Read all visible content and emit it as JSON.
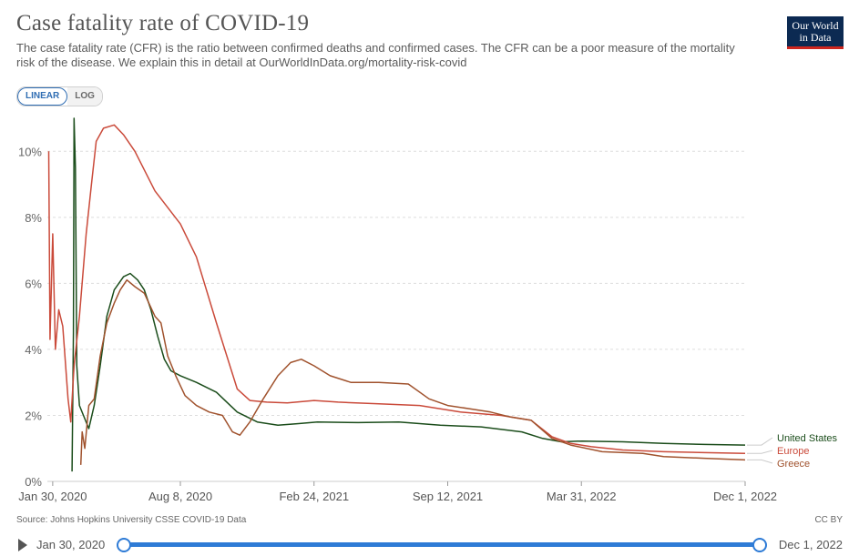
{
  "header": {
    "title": "Case fatality rate of COVID-19",
    "subtitle": "The case fatality rate (CFR) is the ratio between confirmed deaths and confirmed cases. The CFR can be a poor measure of the mortality risk of the disease. We explain this in detail at OurWorldInData.org/mortality-risk-covid",
    "logo_line1": "Our World",
    "logo_line2": "in Data"
  },
  "controls": {
    "linear_label": "LINEAR",
    "log_label": "LOG",
    "active_scale": "linear"
  },
  "footer": {
    "source": "Source: Johns Hopkins University CSSE COVID-19 Data",
    "license": "CC BY"
  },
  "timeline": {
    "start_label": "Jan 30, 2020",
    "end_label": "Dec 1, 2022"
  },
  "chart_data": {
    "type": "line",
    "title": "Case fatality rate of COVID-19",
    "y_unit": "%",
    "ylim": [
      0,
      11
    ],
    "y_ticks": [
      0,
      2,
      4,
      6,
      8,
      10
    ],
    "y_tick_labels": [
      "0%",
      "2%",
      "4%",
      "6%",
      "8%",
      "10%"
    ],
    "x_range": [
      "2020-01-22",
      "2022-12-01"
    ],
    "x_ticks": [
      "2020-01-30",
      "2020-08-08",
      "2021-02-24",
      "2021-09-12",
      "2022-03-31",
      "2022-12-01"
    ],
    "x_tick_labels": [
      "Jan 30, 2020",
      "Aug 8, 2020",
      "Feb 24, 2021",
      "Sep 12, 2021",
      "Mar 31, 2022",
      "Dec 1, 2022"
    ],
    "grid": "horizontal-dashed",
    "legend_position": "right-end-labels",
    "series": [
      {
        "name": "United States",
        "color": "#1b4d1b",
        "points": [
          [
            "2020-02-28",
            0.3
          ],
          [
            "2020-03-01",
            4.5
          ],
          [
            "2020-03-02",
            11.0
          ],
          [
            "2020-03-04",
            9.5
          ],
          [
            "2020-03-06",
            3.5
          ],
          [
            "2020-03-10",
            2.3
          ],
          [
            "2020-03-16",
            2.0
          ],
          [
            "2020-03-24",
            1.6
          ],
          [
            "2020-04-01",
            2.3
          ],
          [
            "2020-04-10",
            3.5
          ],
          [
            "2020-04-20",
            5.0
          ],
          [
            "2020-05-01",
            5.8
          ],
          [
            "2020-05-15",
            6.2
          ],
          [
            "2020-05-25",
            6.3
          ],
          [
            "2020-06-05",
            6.1
          ],
          [
            "2020-06-15",
            5.8
          ],
          [
            "2020-06-25",
            5.2
          ],
          [
            "2020-07-05",
            4.4
          ],
          [
            "2020-07-15",
            3.7
          ],
          [
            "2020-07-25",
            3.35
          ],
          [
            "2020-08-08",
            3.2
          ],
          [
            "2020-09-01",
            3.0
          ],
          [
            "2020-10-01",
            2.7
          ],
          [
            "2020-11-01",
            2.1
          ],
          [
            "2020-12-01",
            1.8
          ],
          [
            "2021-01-01",
            1.7
          ],
          [
            "2021-02-01",
            1.75
          ],
          [
            "2021-03-01",
            1.8
          ],
          [
            "2021-05-01",
            1.78
          ],
          [
            "2021-07-01",
            1.8
          ],
          [
            "2021-09-01",
            1.7
          ],
          [
            "2021-11-01",
            1.65
          ],
          [
            "2022-01-01",
            1.5
          ],
          [
            "2022-02-01",
            1.3
          ],
          [
            "2022-03-01",
            1.2
          ],
          [
            "2022-04-01",
            1.22
          ],
          [
            "2022-06-01",
            1.2
          ],
          [
            "2022-08-01",
            1.15
          ],
          [
            "2022-10-01",
            1.12
          ],
          [
            "2022-12-01",
            1.1
          ]
        ]
      },
      {
        "name": "Europe",
        "color": "#ca4a3a",
        "points": [
          [
            "2020-01-24",
            10.0
          ],
          [
            "2020-01-26",
            4.3
          ],
          [
            "2020-01-30",
            7.5
          ],
          [
            "2020-02-03",
            4.0
          ],
          [
            "2020-02-08",
            5.2
          ],
          [
            "2020-02-14",
            4.7
          ],
          [
            "2020-02-22",
            2.5
          ],
          [
            "2020-02-26",
            1.8
          ],
          [
            "2020-03-02",
            3.5
          ],
          [
            "2020-03-10",
            5.0
          ],
          [
            "2020-03-20",
            7.5
          ],
          [
            "2020-03-28",
            9.0
          ],
          [
            "2020-04-04",
            10.3
          ],
          [
            "2020-04-15",
            10.7
          ],
          [
            "2020-05-01",
            10.8
          ],
          [
            "2020-05-15",
            10.5
          ],
          [
            "2020-06-01",
            10.0
          ],
          [
            "2020-07-01",
            8.8
          ],
          [
            "2020-08-08",
            7.8
          ],
          [
            "2020-09-01",
            6.8
          ],
          [
            "2020-10-01",
            4.8
          ],
          [
            "2020-11-01",
            2.8
          ],
          [
            "2020-11-20",
            2.45
          ],
          [
            "2020-12-15",
            2.4
          ],
          [
            "2021-01-15",
            2.38
          ],
          [
            "2021-02-24",
            2.45
          ],
          [
            "2021-04-01",
            2.4
          ],
          [
            "2021-06-01",
            2.35
          ],
          [
            "2021-08-01",
            2.3
          ],
          [
            "2021-10-01",
            2.1
          ],
          [
            "2021-12-01",
            2.0
          ],
          [
            "2022-01-15",
            1.85
          ],
          [
            "2022-02-15",
            1.35
          ],
          [
            "2022-03-15",
            1.15
          ],
          [
            "2022-04-15",
            1.05
          ],
          [
            "2022-06-01",
            0.95
          ],
          [
            "2022-08-01",
            0.9
          ],
          [
            "2022-10-01",
            0.87
          ],
          [
            "2022-12-01",
            0.85
          ]
        ]
      },
      {
        "name": "Greece",
        "color": "#a0522d",
        "points": [
          [
            "2020-03-12",
            0.5
          ],
          [
            "2020-03-14",
            1.5
          ],
          [
            "2020-03-18",
            1.0
          ],
          [
            "2020-03-24",
            2.3
          ],
          [
            "2020-04-01",
            2.5
          ],
          [
            "2020-04-10",
            3.8
          ],
          [
            "2020-04-20",
            4.8
          ],
          [
            "2020-05-01",
            5.4
          ],
          [
            "2020-05-10",
            5.8
          ],
          [
            "2020-05-20",
            6.1
          ],
          [
            "2020-06-01",
            5.9
          ],
          [
            "2020-06-15",
            5.7
          ],
          [
            "2020-07-01",
            5.0
          ],
          [
            "2020-07-10",
            4.8
          ],
          [
            "2020-07-20",
            3.8
          ],
          [
            "2020-08-01",
            3.2
          ],
          [
            "2020-08-15",
            2.6
          ],
          [
            "2020-09-01",
            2.3
          ],
          [
            "2020-09-20",
            2.1
          ],
          [
            "2020-10-10",
            2.0
          ],
          [
            "2020-10-25",
            1.5
          ],
          [
            "2020-11-05",
            1.4
          ],
          [
            "2020-11-20",
            1.8
          ],
          [
            "2020-12-10",
            2.5
          ],
          [
            "2021-01-01",
            3.2
          ],
          [
            "2021-01-20",
            3.6
          ],
          [
            "2021-02-05",
            3.7
          ],
          [
            "2021-02-24",
            3.5
          ],
          [
            "2021-03-20",
            3.2
          ],
          [
            "2021-04-20",
            3.0
          ],
          [
            "2021-06-01",
            3.0
          ],
          [
            "2021-07-15",
            2.95
          ],
          [
            "2021-08-15",
            2.5
          ],
          [
            "2021-09-12",
            2.3
          ],
          [
            "2021-10-15",
            2.2
          ],
          [
            "2021-11-15",
            2.1
          ],
          [
            "2021-12-15",
            1.95
          ],
          [
            "2022-01-15",
            1.85
          ],
          [
            "2022-02-15",
            1.3
          ],
          [
            "2022-03-15",
            1.1
          ],
          [
            "2022-05-01",
            0.9
          ],
          [
            "2022-07-01",
            0.85
          ],
          [
            "2022-08-01",
            0.75
          ],
          [
            "2022-10-01",
            0.7
          ],
          [
            "2022-12-01",
            0.65
          ]
        ]
      }
    ]
  }
}
